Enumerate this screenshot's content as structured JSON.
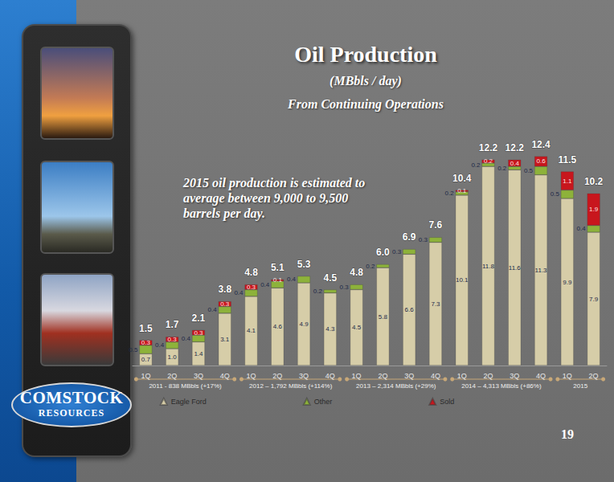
{
  "chart_data": {
    "type": "bar",
    "title": "Oil Production",
    "subtitle": [
      "(MBbls / day)",
      "From Continuing Operations"
    ],
    "annotation": [
      "2015 oil production is estimated to",
      "average between 9,000 to 9,500",
      "barrels per day."
    ],
    "categories": [
      "1Q",
      "2Q",
      "3Q",
      "4Q",
      "1Q",
      "2Q",
      "3Q",
      "4Q",
      "1Q",
      "2Q",
      "3Q",
      "4Q",
      "1Q",
      "2Q",
      "3Q",
      "4Q",
      "1Q",
      "2Q"
    ],
    "periods": [
      {
        "label": "2011 - 838 MBbls (+17%)",
        "span": 4
      },
      {
        "label": "2012 – 1,792 MBbls (+114%)",
        "span": 4
      },
      {
        "label": "2013 – 2,314 MBbls (+29%)",
        "span": 4
      },
      {
        "label": "2014 – 4,313 MBbls (+86%)",
        "span": 4
      },
      {
        "label": "2015",
        "span": 2
      }
    ],
    "series": [
      {
        "name": "Eagle Ford",
        "color": "#d6cda8",
        "values": [
          0.7,
          1.0,
          1.4,
          3.1,
          4.1,
          4.6,
          4.9,
          4.3,
          4.5,
          5.8,
          6.6,
          7.3,
          10.1,
          11.8,
          11.6,
          11.3,
          9.9,
          7.9
        ],
        "value_labels": [
          "0.7",
          "1.0",
          "1.4",
          "3.1",
          "4.1",
          "4.6",
          "4.9",
          "4.3",
          "4.5",
          "5.8",
          "6.6",
          "7.3",
          "10.1",
          "11.8",
          "11.6",
          "11.3",
          "9.9",
          "7.9"
        ]
      },
      {
        "name": "Other",
        "color": "#8db23a",
        "values": [
          0.5,
          0.4,
          0.4,
          0.4,
          0.4,
          0.4,
          0.4,
          0.2,
          0.3,
          0.2,
          0.3,
          0.3,
          0.2,
          0.2,
          0.2,
          0.5,
          0.5,
          0.4
        ]
      },
      {
        "name": "Sold",
        "color": "#c8161d",
        "values": [
          0.3,
          0.3,
          0.3,
          0.3,
          0.3,
          0.1,
          null,
          null,
          null,
          null,
          null,
          null,
          0.1,
          0.2,
          0.4,
          0.6,
          1.1,
          1.9
        ]
      }
    ],
    "totals": [
      1.5,
      1.7,
      2.1,
      3.8,
      4.8,
      5.1,
      5.3,
      4.5,
      4.8,
      6.0,
      6.9,
      7.6,
      10.4,
      12.2,
      12.2,
      12.4,
      11.5,
      10.2
    ],
    "total_labels": [
      "1.5",
      "1.7",
      "2.1",
      "3.8",
      "4.8",
      "5.1",
      "5.3",
      "4.5",
      "4.8",
      "6.0",
      "6.9",
      "7.6",
      "10.4",
      "12.2",
      "12.2",
      "12.4",
      "11.5",
      "10.2"
    ],
    "ylim": [
      0,
      14
    ],
    "stacked": true,
    "data_labels": true,
    "legend": "bottom",
    "grid": false,
    "tick_labels": "x"
  },
  "logo": [
    "COMSTOCK",
    "RESOURCES"
  ],
  "page_number": "19"
}
